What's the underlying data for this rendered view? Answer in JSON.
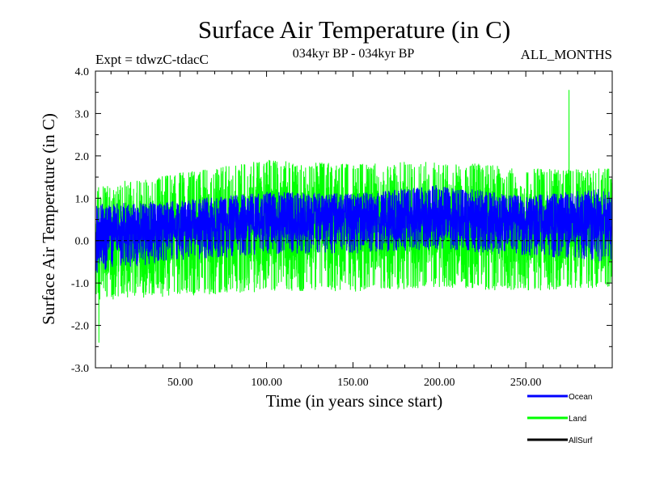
{
  "chart_data": {
    "type": "line",
    "title": "Surface Air Temperature (in C)",
    "subtitle": "034kyr BP - 034kyr BP",
    "experiment_label": "Expt = tdwzC-tdacC",
    "months_label": "ALL_MONTHS",
    "xlabel": "Time (in years since start)",
    "ylabel": "Surface Air Temperature (in C)",
    "xlim": [
      1,
      300
    ],
    "ylim": [
      -3.0,
      4.0
    ],
    "x_ticks": [
      50,
      100,
      150,
      200,
      250
    ],
    "x_tick_labels": [
      "50.00",
      "100.00",
      "150.00",
      "200.00",
      "250.00"
    ],
    "y_ticks": [
      -3,
      -2,
      -1,
      0,
      1,
      2,
      3,
      4
    ],
    "y_tick_labels": [
      "-3.0",
      "-2.0",
      "-1.0",
      "0.0",
      "1.0",
      "2.0",
      "3.0",
      "4.0"
    ],
    "zero_line": 0.0,
    "legend": [
      {
        "name": "Ocean",
        "color": "#0000ff"
      },
      {
        "name": "Land",
        "color": "#00ff00"
      },
      {
        "name": "AllSurf",
        "color": "#000000"
      }
    ],
    "series": [
      {
        "name": "Land",
        "color": "#00ff00",
        "samples_per_year": 12,
        "trend_years": [
          1,
          50,
          100,
          150,
          200,
          250,
          300
        ],
        "trend_mean": [
          0.0,
          0.15,
          0.3,
          0.3,
          0.35,
          0.25,
          0.3
        ],
        "envelope_upper": [
          1.3,
          1.6,
          1.9,
          1.8,
          1.9,
          1.7,
          1.7
        ],
        "envelope_lower": [
          -1.4,
          -1.3,
          -1.2,
          -1.2,
          -1.1,
          -1.2,
          -1.1
        ],
        "max": {
          "year": 275,
          "value": 3.55
        },
        "min": {
          "year": 3,
          "value": -2.4
        }
      },
      {
        "name": "Ocean",
        "color": "#0000ff",
        "samples_per_year": 12,
        "trend_years": [
          1,
          50,
          100,
          150,
          200,
          250,
          300
        ],
        "trend_mean": [
          0.2,
          0.35,
          0.5,
          0.55,
          0.6,
          0.45,
          0.5
        ],
        "envelope_upper": [
          0.85,
          0.95,
          1.15,
          1.1,
          1.3,
          1.05,
          1.25
        ],
        "envelope_lower": [
          -0.7,
          -0.5,
          -0.3,
          -0.3,
          -0.2,
          -0.35,
          -0.5
        ],
        "max": {
          "year": 198,
          "value": 1.3
        },
        "min": {
          "year": 2,
          "value": -0.75
        }
      }
    ]
  }
}
